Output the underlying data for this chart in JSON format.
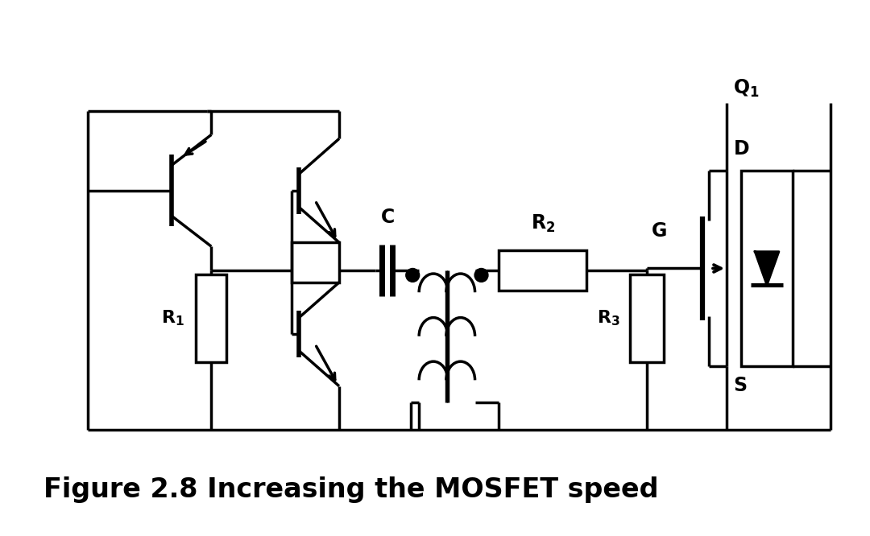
{
  "title": "Figure 2.8 Increasing the MOSFET speed",
  "title_fontsize": 24,
  "bg_color": "#ffffff",
  "line_color": "#000000",
  "line_width": 2.5,
  "figsize": [
    10.8,
    6.66
  ],
  "dpi": 100
}
